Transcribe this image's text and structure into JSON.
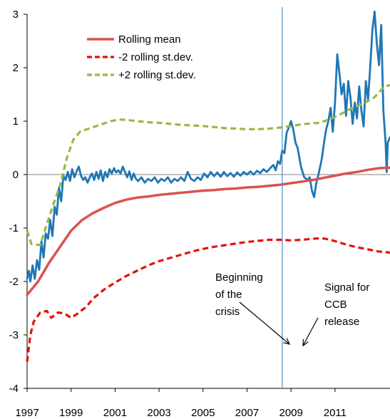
{
  "chart_data": {
    "type": "line",
    "x_ticks": [
      "1997",
      "1999",
      "2001",
      "2003",
      "2005",
      "2007",
      "2009",
      "2011"
    ],
    "y_ticks": [
      "-4",
      "-3",
      "-2",
      "-1",
      "0",
      "1",
      "2",
      "3"
    ],
    "xlim": [
      1997,
      2013.5
    ],
    "ylim": [
      -4,
      3
    ],
    "grid": false,
    "zero_line": true,
    "legend_position": "top-left",
    "series": [
      {
        "name": "Rolling mean",
        "color": "#d9534f",
        "style": "solid",
        "points": [
          [
            1997.0,
            -2.25
          ],
          [
            1997.5,
            -2.0
          ],
          [
            1998.0,
            -1.65
          ],
          [
            1998.5,
            -1.35
          ],
          [
            1999.0,
            -1.05
          ],
          [
            1999.5,
            -0.85
          ],
          [
            2000.0,
            -0.72
          ],
          [
            2000.5,
            -0.62
          ],
          [
            2001.0,
            -0.53
          ],
          [
            2001.5,
            -0.47
          ],
          [
            2002.0,
            -0.43
          ],
          [
            2002.5,
            -0.41
          ],
          [
            2003.0,
            -0.38
          ],
          [
            2003.5,
            -0.36
          ],
          [
            2004.0,
            -0.34
          ],
          [
            2004.5,
            -0.32
          ],
          [
            2005.0,
            -0.3
          ],
          [
            2005.5,
            -0.29
          ],
          [
            2006.0,
            -0.27
          ],
          [
            2006.5,
            -0.26
          ],
          [
            2007.0,
            -0.24
          ],
          [
            2007.5,
            -0.23
          ],
          [
            2008.0,
            -0.21
          ],
          [
            2008.5,
            -0.19
          ],
          [
            2009.0,
            -0.16
          ],
          [
            2009.5,
            -0.13
          ],
          [
            2010.0,
            -0.1
          ],
          [
            2010.5,
            -0.06
          ],
          [
            2011.0,
            -0.02
          ],
          [
            2011.5,
            0.02
          ],
          [
            2012.0,
            0.05
          ],
          [
            2012.5,
            0.09
          ],
          [
            2013.0,
            0.12
          ],
          [
            2013.5,
            0.13
          ]
        ]
      },
      {
        "name": "-2 rolling st.dev.",
        "color": "#e3120b",
        "style": "dashed",
        "points": [
          [
            1997.0,
            -3.5
          ],
          [
            1997.15,
            -3.0
          ],
          [
            1997.3,
            -2.75
          ],
          [
            1997.6,
            -2.58
          ],
          [
            1997.9,
            -2.55
          ],
          [
            1998.1,
            -2.68
          ],
          [
            1998.4,
            -2.58
          ],
          [
            1998.7,
            -2.6
          ],
          [
            1999.0,
            -2.68
          ],
          [
            1999.3,
            -2.6
          ],
          [
            1999.7,
            -2.47
          ],
          [
            2000.0,
            -2.32
          ],
          [
            2000.5,
            -2.15
          ],
          [
            2001.0,
            -2.02
          ],
          [
            2001.5,
            -1.9
          ],
          [
            2002.0,
            -1.8
          ],
          [
            2002.5,
            -1.7
          ],
          [
            2003.0,
            -1.62
          ],
          [
            2003.5,
            -1.56
          ],
          [
            2004.0,
            -1.5
          ],
          [
            2004.5,
            -1.44
          ],
          [
            2005.0,
            -1.39
          ],
          [
            2005.5,
            -1.35
          ],
          [
            2006.0,
            -1.32
          ],
          [
            2006.5,
            -1.29
          ],
          [
            2007.0,
            -1.26
          ],
          [
            2007.5,
            -1.24
          ],
          [
            2008.0,
            -1.22
          ],
          [
            2008.5,
            -1.22
          ],
          [
            2009.0,
            -1.23
          ],
          [
            2009.5,
            -1.22
          ],
          [
            2010.0,
            -1.2
          ],
          [
            2010.4,
            -1.19
          ],
          [
            2010.8,
            -1.22
          ],
          [
            2011.2,
            -1.27
          ],
          [
            2011.6,
            -1.32
          ],
          [
            2012.0,
            -1.36
          ],
          [
            2012.5,
            -1.4
          ],
          [
            2013.0,
            -1.44
          ],
          [
            2013.5,
            -1.46
          ]
        ]
      },
      {
        "name": "+2 rolling st.dev.",
        "color": "#9ab847",
        "style": "dashed",
        "points": [
          [
            1997.0,
            -1.05
          ],
          [
            1997.2,
            -1.3
          ],
          [
            1997.6,
            -1.32
          ],
          [
            1997.9,
            -0.92
          ],
          [
            1998.2,
            -0.55
          ],
          [
            1998.5,
            -0.2
          ],
          [
            1998.8,
            0.3
          ],
          [
            1999.1,
            0.65
          ],
          [
            1999.4,
            0.8
          ],
          [
            1999.8,
            0.86
          ],
          [
            2000.3,
            0.93
          ],
          [
            2000.8,
            1.0
          ],
          [
            2001.2,
            1.03
          ],
          [
            2001.6,
            1.02
          ],
          [
            2002.0,
            1.0
          ],
          [
            2002.5,
            0.98
          ],
          [
            2003.0,
            0.97
          ],
          [
            2003.5,
            0.95
          ],
          [
            2004.0,
            0.93
          ],
          [
            2004.5,
            0.92
          ],
          [
            2005.0,
            0.91
          ],
          [
            2005.5,
            0.89
          ],
          [
            2006.0,
            0.87
          ],
          [
            2006.5,
            0.86
          ],
          [
            2007.0,
            0.85
          ],
          [
            2007.5,
            0.85
          ],
          [
            2008.0,
            0.86
          ],
          [
            2008.5,
            0.88
          ],
          [
            2009.0,
            0.91
          ],
          [
            2009.5,
            0.94
          ],
          [
            2010.0,
            0.96
          ],
          [
            2010.3,
            0.97
          ],
          [
            2010.8,
            1.04
          ],
          [
            2011.3,
            1.14
          ],
          [
            2011.8,
            1.25
          ],
          [
            2012.3,
            1.33
          ],
          [
            2012.8,
            1.45
          ],
          [
            2013.2,
            1.63
          ],
          [
            2013.5,
            1.68
          ]
        ]
      },
      {
        "name": "",
        "color": "#1f77b4",
        "style": "solid",
        "points": [
          [
            1997.0,
            -1.95
          ],
          [
            1997.08,
            -1.8
          ],
          [
            1997.15,
            -2.0
          ],
          [
            1997.25,
            -1.7
          ],
          [
            1997.35,
            -1.95
          ],
          [
            1997.45,
            -1.6
          ],
          [
            1997.55,
            -1.78
          ],
          [
            1997.65,
            -1.25
          ],
          [
            1997.75,
            -1.55
          ],
          [
            1997.85,
            -1.1
          ],
          [
            1997.95,
            -1.2
          ],
          [
            1998.05,
            -0.85
          ],
          [
            1998.15,
            -1.15
          ],
          [
            1998.25,
            -0.6
          ],
          [
            1998.35,
            -0.75
          ],
          [
            1998.45,
            -0.25
          ],
          [
            1998.55,
            -0.5
          ],
          [
            1998.65,
            -0.02
          ],
          [
            1998.75,
            -0.1
          ],
          [
            1998.85,
            0.05
          ],
          [
            1998.95,
            -0.12
          ],
          [
            1999.05,
            0.1
          ],
          [
            1999.15,
            -0.05
          ],
          [
            1999.25,
            0.06
          ],
          [
            1999.35,
            0.15
          ],
          [
            1999.45,
            -0.02
          ],
          [
            1999.55,
            -0.1
          ],
          [
            1999.65,
            -0.05
          ],
          [
            1999.75,
            -0.15
          ],
          [
            1999.85,
            -0.05
          ],
          [
            1999.95,
            0.02
          ],
          [
            2000.05,
            -0.1
          ],
          [
            2000.15,
            0.05
          ],
          [
            2000.25,
            -0.08
          ],
          [
            2000.35,
            0.08
          ],
          [
            2000.45,
            -0.12
          ],
          [
            2000.55,
            0.05
          ],
          [
            2000.65,
            -0.05
          ],
          [
            2000.75,
            0.1
          ],
          [
            2000.85,
            0.02
          ],
          [
            2000.95,
            0.12
          ],
          [
            2001.05,
            0.04
          ],
          [
            2001.15,
            0.08
          ],
          [
            2001.25,
            0.02
          ],
          [
            2001.35,
            0.15
          ],
          [
            2001.45,
            0.05
          ],
          [
            2001.55,
            -0.05
          ],
          [
            2001.65,
            0.06
          ],
          [
            2001.75,
            -0.1
          ],
          [
            2001.85,
            0.02
          ],
          [
            2001.95,
            -0.08
          ],
          [
            2002.05,
            -0.12
          ],
          [
            2002.2,
            -0.05
          ],
          [
            2002.35,
            -0.15
          ],
          [
            2002.5,
            -0.08
          ],
          [
            2002.65,
            -0.12
          ],
          [
            2002.8,
            -0.05
          ],
          [
            2002.95,
            -0.15
          ],
          [
            2003.1,
            -0.08
          ],
          [
            2003.25,
            -0.12
          ],
          [
            2003.4,
            -0.05
          ],
          [
            2003.55,
            -0.15
          ],
          [
            2003.7,
            -0.08
          ],
          [
            2003.85,
            -0.12
          ],
          [
            2004.0,
            -0.05
          ],
          [
            2004.15,
            -0.12
          ],
          [
            2004.3,
            0.05
          ],
          [
            2004.45,
            -0.08
          ],
          [
            2004.6,
            -0.12
          ],
          [
            2004.75,
            -0.05
          ],
          [
            2004.9,
            -0.1
          ],
          [
            2005.05,
            0.02
          ],
          [
            2005.2,
            -0.05
          ],
          [
            2005.35,
            0.05
          ],
          [
            2005.5,
            -0.03
          ],
          [
            2005.65,
            0.04
          ],
          [
            2005.8,
            -0.04
          ],
          [
            2005.95,
            0.05
          ],
          [
            2006.1,
            -0.03
          ],
          [
            2006.25,
            0.03
          ],
          [
            2006.4,
            -0.04
          ],
          [
            2006.55,
            0.04
          ],
          [
            2006.7,
            -0.02
          ],
          [
            2006.85,
            0.05
          ],
          [
            2007.0,
            0.0
          ],
          [
            2007.15,
            0.06
          ],
          [
            2007.3,
            0.0
          ],
          [
            2007.45,
            0.07
          ],
          [
            2007.6,
            0.03
          ],
          [
            2007.75,
            0.1
          ],
          [
            2007.9,
            0.05
          ],
          [
            2008.05,
            0.12
          ],
          [
            2008.2,
            0.18
          ],
          [
            2008.3,
            0.08
          ],
          [
            2008.4,
            0.25
          ],
          [
            2008.5,
            0.2
          ],
          [
            2008.6,
            0.45
          ],
          [
            2008.7,
            0.4
          ],
          [
            2008.8,
            0.78
          ],
          [
            2008.9,
            0.88
          ],
          [
            2009.0,
            1.0
          ],
          [
            2009.1,
            0.85
          ],
          [
            2009.2,
            0.6
          ],
          [
            2009.3,
            0.5
          ],
          [
            2009.45,
            0.15
          ],
          [
            2009.6,
            -0.05
          ],
          [
            2009.75,
            -0.1
          ],
          [
            2009.85,
            -0.05
          ],
          [
            2009.95,
            -0.3
          ],
          [
            2010.05,
            -0.42
          ],
          [
            2010.15,
            -0.15
          ],
          [
            2010.25,
            0.0
          ],
          [
            2010.4,
            0.3
          ],
          [
            2010.5,
            0.6
          ],
          [
            2010.6,
            0.85
          ],
          [
            2010.7,
            1.0
          ],
          [
            2010.8,
            1.25
          ],
          [
            2010.9,
            0.8
          ],
          [
            2011.0,
            1.35
          ],
          [
            2011.1,
            2.25
          ],
          [
            2011.2,
            1.9
          ],
          [
            2011.3,
            1.5
          ],
          [
            2011.4,
            1.7
          ],
          [
            2011.5,
            1.1
          ],
          [
            2011.6,
            1.75
          ],
          [
            2011.7,
            1.45
          ],
          [
            2011.8,
            0.95
          ],
          [
            2011.9,
            1.35
          ],
          [
            2012.0,
            1.05
          ],
          [
            2012.1,
            1.65
          ],
          [
            2012.2,
            1.2
          ],
          [
            2012.3,
            0.9
          ],
          [
            2012.4,
            1.75
          ],
          [
            2012.5,
            1.4
          ],
          [
            2012.6,
            2.0
          ],
          [
            2012.7,
            2.7
          ],
          [
            2012.8,
            3.05
          ],
          [
            2012.9,
            2.45
          ],
          [
            2013.0,
            2.05
          ],
          [
            2013.1,
            2.8
          ],
          [
            2013.2,
            1.2
          ],
          [
            2013.3,
            0.6
          ],
          [
            2013.35,
            0.05
          ],
          [
            2013.4,
            0.6
          ],
          [
            2013.5,
            0.7
          ]
        ]
      }
    ],
    "vertical_marker": {
      "x": 2008.6,
      "color": "#4a90c8"
    },
    "annotations": [
      {
        "lines": [
          "Beginning",
          "of the",
          "crisis"
        ]
      },
      {
        "lines": [
          "Signal for",
          "CCB",
          "release"
        ]
      }
    ]
  }
}
